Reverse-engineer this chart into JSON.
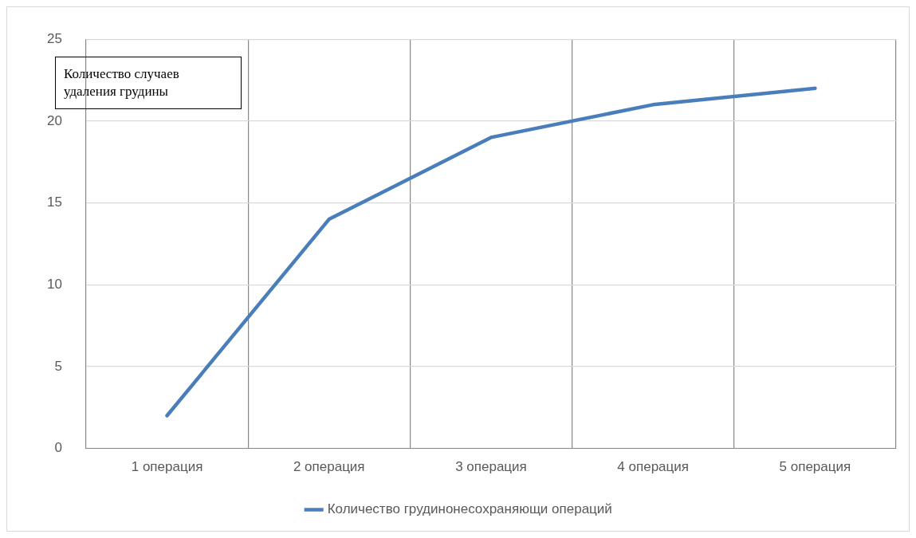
{
  "chart_data": {
    "type": "line",
    "ylabel": "Количество случаев удаления грудины",
    "categories": [
      "1 операция",
      "2 операция",
      "3 операция",
      "4 операция",
      "5 операция"
    ],
    "series": [
      {
        "name": "Количество грудинонесохраняющи операций",
        "color": "#4a7ebb",
        "values": [
          2,
          14,
          19,
          21,
          22
        ]
      }
    ],
    "ylim": [
      0,
      25
    ],
    "yticks": [
      0,
      5,
      10,
      15,
      20,
      25
    ],
    "grid": true,
    "legend": "bottom",
    "marker": "none",
    "line_style": "solid"
  }
}
